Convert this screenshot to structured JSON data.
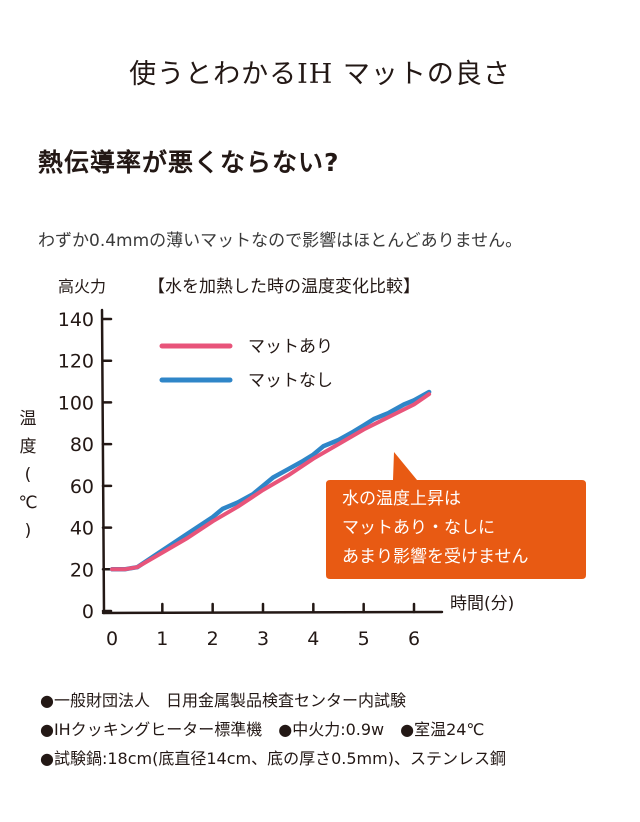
{
  "page_title": "使うとわかるIH マットの良さ",
  "section_heading": "熱伝導率が悪くならない?",
  "description": "わずか0.4mmの薄いマットなので影響はほとんどありません。",
  "notes": [
    "●一般財団法人　日用金属製品検査センター内試験",
    "●IHクッキングヒーター標準機　●中火力:0.9w　●室温24℃",
    "●試験鍋:18cm(底直径14cm、底の厚さ0.5mm)、ステンレス鋼"
  ],
  "colors": {
    "with_mat": "#e8547a",
    "without_mat": "#2f86c8",
    "callout": "#e85a13",
    "axis": "#231815"
  },
  "chart_data": {
    "type": "line",
    "title": "【水を加熱した時の温度変化比較】",
    "corner_label": "高火力",
    "xlabel": "時間(分)",
    "ylabel": "温度(℃)",
    "xlim": [
      0,
      6.6
    ],
    "ylim": [
      0,
      140
    ],
    "x_ticks": [
      "0",
      "1",
      "2",
      "3",
      "4",
      "5",
      "6"
    ],
    "y_ticks": [
      "0",
      "20",
      "40",
      "60",
      "80",
      "100",
      "120",
      "140"
    ],
    "grid": false,
    "legend_position": "top-left",
    "series": [
      {
        "name": "マットあり",
        "color_key": "with_mat",
        "x": [
          0,
          0.25,
          0.5,
          1,
          1.5,
          2,
          2.5,
          3,
          3.5,
          4,
          4.5,
          5,
          5.5,
          6,
          6.3
        ],
        "y": [
          20,
          20,
          21,
          28,
          35,
          43,
          50,
          58,
          65,
          73,
          80,
          87,
          93,
          99,
          104
        ]
      },
      {
        "name": "マットなし",
        "color_key": "without_mat",
        "x": [
          0,
          0.25,
          0.5,
          1,
          1.5,
          2,
          2.2,
          2.5,
          2.8,
          3,
          3.2,
          3.5,
          3.8,
          4,
          4.2,
          4.5,
          4.8,
          5,
          5.2,
          5.5,
          5.8,
          6,
          6.3
        ],
        "y": [
          20,
          20,
          21,
          29,
          37,
          45,
          49,
          52,
          56,
          60,
          64,
          68,
          72,
          75,
          79,
          82,
          86,
          89,
          92,
          95,
          99,
          101,
          105
        ]
      }
    ],
    "annotation": [
      "水の温度上昇は",
      "マットあり・なしに",
      "あまり影響を受けません"
    ]
  }
}
